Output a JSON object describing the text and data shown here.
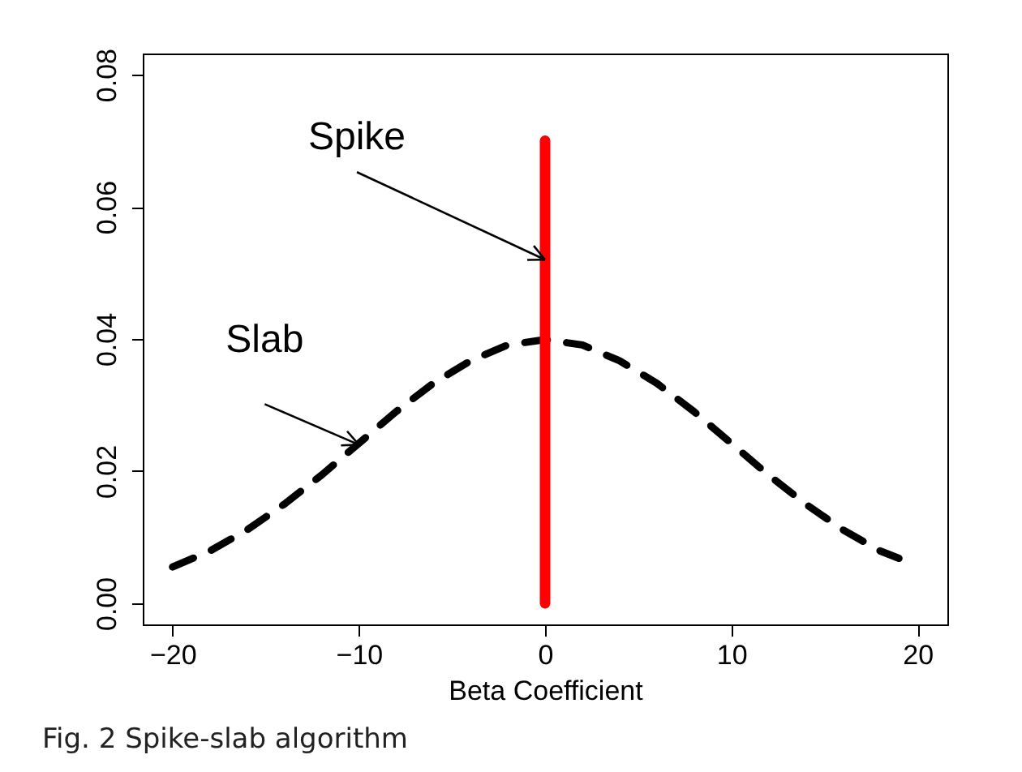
{
  "chart_data": {
    "type": "line",
    "xlabel": "Beta Coefficient",
    "xlim": [
      -21.6,
      21.6
    ],
    "ylim": [
      -0.0032,
      0.0832
    ],
    "xticks": [
      {
        "value": -20,
        "label": "−20"
      },
      {
        "value": -10,
        "label": "−10"
      },
      0,
      10,
      20
    ],
    "yticks": [
      {
        "value": 0,
        "label": "0.00"
      },
      {
        "value": 0.02,
        "label": "0.02"
      },
      {
        "value": 0.04,
        "label": "0.04"
      },
      {
        "value": 0.06,
        "label": "0.06"
      },
      {
        "value": 0.08,
        "label": "0.08"
      }
    ],
    "series": [
      {
        "color": "#000000",
        "line_style": "dashed",
        "x": [
          -20,
          -18,
          -16,
          -14,
          -12,
          -10,
          -8,
          -6,
          -4,
          -2,
          0,
          2,
          4,
          6,
          8,
          10,
          12,
          14,
          16,
          18,
          19
        ],
        "values": [
          0.0055,
          0.0079,
          0.0111,
          0.015,
          0.0194,
          0.0242,
          0.029,
          0.0333,
          0.0367,
          0.0391,
          0.0399,
          0.0391,
          0.0367,
          0.0333,
          0.029,
          0.0242,
          0.0194,
          0.015,
          0.0111,
          0.0079,
          0.0068
        ]
      },
      {
        "color": "#ff0000",
        "line_style": "solid",
        "x": [
          0,
          0
        ],
        "values": [
          0,
          0.07
        ]
      }
    ],
    "annotations": [
      {
        "text": "Spike",
        "x": 0,
        "y": 0.052
      },
      {
        "text": "Slab",
        "x": -10,
        "y": 0.024
      },
      "Fig. 2 Spike-slab algorithm"
    ],
    "grid": false,
    "marker": "none"
  }
}
